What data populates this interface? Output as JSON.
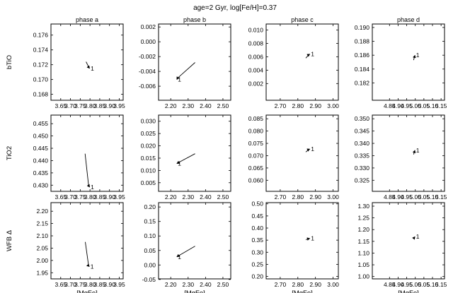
{
  "figure": {
    "title": "age=2 Gyr, log[Fe/H]=0.37"
  },
  "chart_data": [
    {
      "type": "line",
      "col_title": "phase a",
      "ylabel": "bTiO",
      "xlabel": "",
      "xlim": [
        3.6,
        3.97
      ],
      "ylim": [
        0.1672,
        0.1775
      ],
      "xticks": [
        "3.65",
        "3.70",
        "3.75",
        "3.80",
        "3.85",
        "3.90",
        "3.95"
      ],
      "xtick_values": [
        3.65,
        3.7,
        3.75,
        3.8,
        3.85,
        3.9,
        3.95
      ],
      "yticks": [
        "0.168",
        "0.170",
        "0.172",
        "0.174",
        "0.176"
      ],
      "ytick_values": [
        0.168,
        0.17,
        0.172,
        0.174,
        0.176
      ],
      "series": [
        {
          "x": [
            3.78,
            3.795,
            3.798
          ],
          "y": [
            0.1724,
            0.1716,
            0.1715
          ],
          "end_label": "1"
        }
      ]
    },
    {
      "type": "line",
      "col_title": "phase b",
      "ylabel": "",
      "xlabel": "",
      "xlim": [
        2.13,
        2.545
      ],
      "ylim": [
        -0.0079,
        0.0024
      ],
      "xticks": [
        "2.20",
        "2.30",
        "2.40",
        "2.50"
      ],
      "xtick_values": [
        2.2,
        2.3,
        2.4,
        2.5
      ],
      "yticks": [
        "0.002",
        "0.000",
        "-0.002",
        "-0.004",
        "-0.006"
      ],
      "ytick_values": [
        0.002,
        0.0,
        -0.002,
        -0.004,
        -0.006
      ],
      "series": [
        {
          "x": [
            2.34,
            2.24,
            2.235
          ],
          "y": [
            -0.0028,
            -0.0049,
            -0.0051
          ],
          "end_label": "1"
        }
      ]
    },
    {
      "type": "line",
      "col_title": "phase c",
      "ylabel": "",
      "xlabel": "",
      "xlim": [
        2.62,
        3.03
      ],
      "ylim": [
        -0.0005,
        0.0109
      ],
      "xticks": [
        "2.70",
        "2.80",
        "2.90",
        "3.00"
      ],
      "xtick_values": [
        2.7,
        2.8,
        2.9,
        3.0
      ],
      "yticks": [
        "0.002",
        "0.004",
        "0.006",
        "0.008",
        "0.010"
      ],
      "ytick_values": [
        0.002,
        0.004,
        0.006,
        0.008,
        0.01
      ],
      "series": [
        {
          "x": [
            2.845,
            2.862,
            2.868
          ],
          "y": [
            0.0058,
            0.0063,
            0.0064
          ],
          "end_label": "1"
        }
      ]
    },
    {
      "type": "line",
      "col_title": "phase d",
      "ylabel": "",
      "xlabel": "",
      "xlim": [
        4.75,
        5.17
      ],
      "ylim": [
        0.1795,
        0.1905
      ],
      "xticks": [
        "4.85",
        "4.90",
        "4.95",
        "5.00",
        "5.05",
        "5.10",
        "5.15"
      ],
      "xtick_values": [
        4.85,
        4.9,
        4.95,
        5.0,
        5.05,
        5.1,
        5.15
      ],
      "yticks": [
        "0.182",
        "0.184",
        "0.186",
        "0.188",
        "0.190"
      ],
      "ytick_values": [
        0.182,
        0.184,
        0.186,
        0.188,
        0.19
      ],
      "series": [
        {
          "x": [
            4.99,
            4.996,
            4.998
          ],
          "y": [
            0.1853,
            0.1858,
            0.186
          ],
          "end_label": "1"
        }
      ]
    },
    {
      "type": "line",
      "col_title": "",
      "ylabel": "TiO2",
      "xlabel": "",
      "xlim": [
        3.6,
        3.97
      ],
      "ylim": [
        0.4275,
        0.4585
      ],
      "xticks": [
        "3.65",
        "3.70",
        "3.75",
        "3.80",
        "3.85",
        "3.90",
        "3.95"
      ],
      "xtick_values": [
        3.65,
        3.7,
        3.75,
        3.8,
        3.85,
        3.9,
        3.95
      ],
      "yticks": [
        "0.455",
        "0.450",
        "0.445",
        "0.440",
        "0.435",
        "0.430"
      ],
      "ytick_values": [
        0.455,
        0.45,
        0.445,
        0.44,
        0.435,
        0.43
      ],
      "series": [
        {
          "x": [
            3.775,
            3.793,
            3.798
          ],
          "y": [
            0.4428,
            0.4298,
            0.4292
          ],
          "end_label": "1"
        }
      ]
    },
    {
      "type": "line",
      "col_title": "",
      "ylabel": "",
      "xlabel": "",
      "xlim": [
        2.13,
        2.545
      ],
      "ylim": [
        0.0015,
        0.0325
      ],
      "xticks": [
        "2.20",
        "2.30",
        "2.40",
        "2.50"
      ],
      "xtick_values": [
        2.2,
        2.3,
        2.4,
        2.5
      ],
      "yticks": [
        "0.030",
        "0.025",
        "0.020",
        "0.015",
        "0.010",
        "0.005"
      ],
      "ytick_values": [
        0.03,
        0.025,
        0.02,
        0.015,
        0.01,
        0.005
      ],
      "series": [
        {
          "x": [
            2.34,
            2.24,
            2.235
          ],
          "y": [
            0.0168,
            0.013,
            0.0128
          ],
          "end_label": "1"
        }
      ]
    },
    {
      "type": "line",
      "col_title": "",
      "ylabel": "",
      "xlabel": "",
      "xlim": [
        2.62,
        3.03
      ],
      "ylim": [
        0.0555,
        0.0865
      ],
      "xticks": [
        "2.70",
        "2.80",
        "2.90",
        "3.00"
      ],
      "xtick_values": [
        2.7,
        2.8,
        2.9,
        3.0
      ],
      "yticks": [
        "0.085",
        "0.080",
        "0.075",
        "0.070",
        "0.065",
        "0.060"
      ],
      "ytick_values": [
        0.085,
        0.08,
        0.075,
        0.07,
        0.065,
        0.06
      ],
      "series": [
        {
          "x": [
            2.845,
            2.862,
            2.868
          ],
          "y": [
            0.0715,
            0.0725,
            0.0727
          ],
          "end_label": "1"
        }
      ]
    },
    {
      "type": "line",
      "col_title": "",
      "ylabel": "",
      "xlabel": "",
      "xlim": [
        4.75,
        5.17
      ],
      "ylim": [
        0.3205,
        0.3515
      ],
      "xticks": [
        "4.85",
        "4.90",
        "4.95",
        "5.00",
        "5.05",
        "5.10",
        "5.15"
      ],
      "xtick_values": [
        4.85,
        4.9,
        4.95,
        5.0,
        5.05,
        5.1,
        5.15
      ],
      "yticks": [
        "0.350",
        "0.345",
        "0.340",
        "0.335",
        "0.330",
        "0.325"
      ],
      "ytick_values": [
        0.35,
        0.345,
        0.34,
        0.335,
        0.33,
        0.325
      ],
      "series": [
        {
          "x": [
            4.99,
            4.996,
            4.998
          ],
          "y": [
            0.3355,
            0.3368,
            0.3372
          ],
          "end_label": "1"
        }
      ]
    },
    {
      "type": "line",
      "col_title": "",
      "ylabel": "WFB Δ",
      "xlabel": "[MgFe]",
      "xlim": [
        3.6,
        3.97
      ],
      "ylim": [
        1.925,
        2.235
      ],
      "xticks": [
        "3.65",
        "3.70",
        "3.75",
        "3.80",
        "3.85",
        "3.90",
        "3.95"
      ],
      "xtick_values": [
        3.65,
        3.7,
        3.75,
        3.8,
        3.85,
        3.9,
        3.95
      ],
      "yticks": [
        "2.20",
        "2.15",
        "2.10",
        "2.05",
        "2.00",
        "1.95"
      ],
      "ytick_values": [
        2.2,
        2.15,
        2.1,
        2.05,
        2.0,
        1.95
      ],
      "series": [
        {
          "x": [
            3.776,
            3.793,
            3.797
          ],
          "y": [
            2.075,
            1.978,
            1.975
          ],
          "end_label": "1"
        }
      ]
    },
    {
      "type": "line",
      "col_title": "",
      "ylabel": "",
      "xlabel": "[MgFe]",
      "xlim": [
        2.13,
        2.545
      ],
      "ylim": [
        -0.048,
        0.215
      ],
      "xticks": [
        "2.20",
        "2.30",
        "2.40",
        "2.50"
      ],
      "xtick_values": [
        2.2,
        2.3,
        2.4,
        2.5
      ],
      "yticks": [
        "0.20",
        "0.15",
        "0.10",
        "0.05",
        "0.00",
        "-0.05"
      ],
      "ytick_values": [
        0.2,
        0.15,
        0.1,
        0.05,
        0.0,
        -0.05
      ],
      "series": [
        {
          "x": [
            2.34,
            2.24,
            2.235
          ],
          "y": [
            0.065,
            0.03,
            0.028
          ],
          "end_label": "1"
        }
      ]
    },
    {
      "type": "line",
      "col_title": "",
      "ylabel": "",
      "xlabel": "[MgFe]",
      "xlim": [
        2.62,
        3.03
      ],
      "ylim": [
        0.19,
        0.505
      ],
      "xticks": [
        "2.70",
        "2.80",
        "2.90",
        "3.00"
      ],
      "xtick_values": [
        2.7,
        2.8,
        2.9,
        3.0
      ],
      "yticks": [
        "0.50",
        "0.45",
        "0.40",
        "0.35",
        "0.30",
        "0.25",
        "0.20"
      ],
      "ytick_values": [
        0.5,
        0.45,
        0.4,
        0.35,
        0.3,
        0.25,
        0.2
      ],
      "series": [
        {
          "x": [
            2.845,
            2.862,
            2.868
          ],
          "y": [
            0.352,
            0.356,
            0.357
          ],
          "end_label": "1"
        }
      ]
    },
    {
      "type": "line",
      "col_title": "",
      "ylabel": "",
      "xlabel": "[MgFe]",
      "xlim": [
        4.75,
        5.17
      ],
      "ylim": [
        0.99,
        1.315
      ],
      "xticks": [
        "4.85",
        "4.90",
        "4.95",
        "5.00",
        "5.05",
        "5.10",
        "5.15"
      ],
      "xtick_values": [
        4.85,
        4.9,
        4.95,
        5.0,
        5.05,
        5.1,
        5.15
      ],
      "yticks": [
        "1.30",
        "1.25",
        "1.20",
        "1.15",
        "1.10",
        "1.05",
        "1.00"
      ],
      "ytick_values": [
        1.3,
        1.25,
        1.2,
        1.15,
        1.1,
        1.05,
        1.0
      ],
      "series": [
        {
          "x": [
            4.99,
            4.996,
            4.998
          ],
          "y": [
            1.163,
            1.168,
            1.17
          ],
          "end_label": "1"
        }
      ]
    }
  ]
}
